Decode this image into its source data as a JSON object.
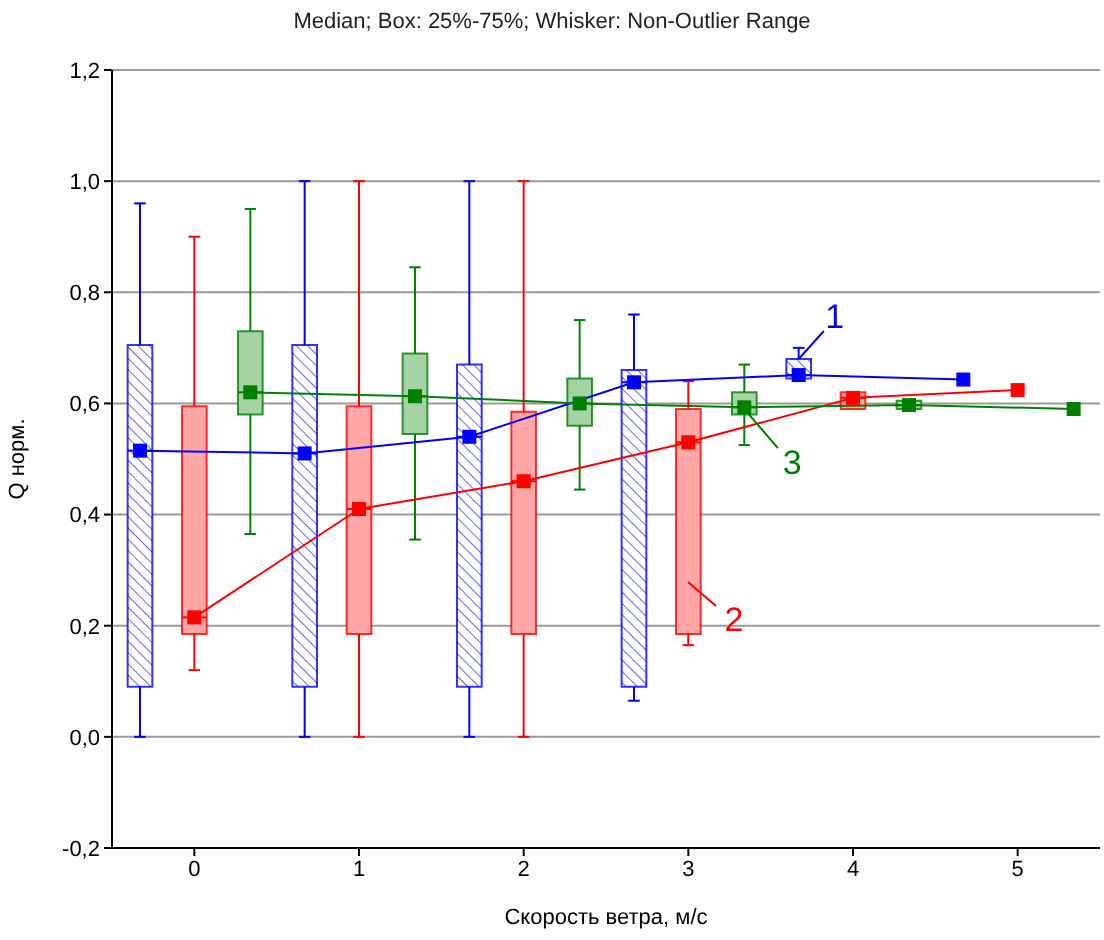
{
  "chart_data": {
    "type": "box",
    "title": "Median; Box: 25%-75%; Whisker: Non-Outlier Range",
    "xlabel": "Скорость ветра, м/с",
    "ylabel": "Q норм.",
    "xlim": [
      -0.5,
      5.5
    ],
    "xticks": [
      0,
      1,
      2,
      3,
      4,
      5
    ],
    "ylim": [
      -0.2,
      1.2
    ],
    "yticks": [
      {
        "value": -0.2,
        "label": "-0,2"
      },
      {
        "value": 0,
        "label": "0,0"
      },
      {
        "value": 0.2,
        "label": "0,2"
      },
      {
        "value": 0.4,
        "label": "0,4"
      },
      {
        "value": 0.6,
        "label": "0,6"
      },
      {
        "value": 0.8,
        "label": "0,8"
      },
      {
        "value": 1.0,
        "label": "1,0"
      },
      {
        "value": 1.2,
        "label": "1,2"
      }
    ],
    "grid": "y",
    "marker": "square",
    "series": [
      {
        "color": "#0000ff",
        "x": [
          -0.33,
          0.67,
          1.67,
          2.67,
          3.67
        ],
        "boxes": [
          {
            "low": 0,
            "q1": 0.09,
            "median": 0.515,
            "q3": 0.705,
            "high": 0.96
          },
          {
            "low": 0,
            "q1": 0.09,
            "median": 0.51,
            "q3": 0.705,
            "high": 1.0
          },
          {
            "low": 0,
            "q1": 0.09,
            "median": 0.54,
            "q3": 0.67,
            "high": 1.0
          },
          {
            "low": 0.065,
            "q1": 0.09,
            "median": 0.638,
            "q3": 0.66,
            "high": 0.76
          },
          {
            "low": 0.645,
            "q1": 0.645,
            "median": 0.651,
            "q3": 0.68,
            "high": 0.7
          }
        ]
      },
      {
        "color": "#ff0000",
        "x": [
          0,
          1,
          2,
          3,
          4
        ],
        "boxes": [
          {
            "low": 0.12,
            "q1": 0.185,
            "median": 0.215,
            "q3": 0.595,
            "high": 0.9
          },
          {
            "low": 0,
            "q1": 0.185,
            "median": 0.41,
            "q3": 0.595,
            "high": 1.0
          },
          {
            "low": 0,
            "q1": 0.185,
            "median": 0.46,
            "q3": 0.585,
            "high": 1.0
          },
          {
            "low": 0.165,
            "q1": 0.185,
            "median": 0.53,
            "q3": 0.59,
            "high": 0.64
          },
          {
            "low": 0.59,
            "q1": 0.59,
            "median": 0.61,
            "q3": 0.62,
            "high": 0.62
          }
        ]
      },
      {
        "color": "#008000",
        "x": [
          0.34,
          1.34,
          2.34,
          3.34,
          4.34
        ],
        "boxes": [
          {
            "low": 0.365,
            "q1": 0.58,
            "median": 0.62,
            "q3": 0.73,
            "high": 0.95
          },
          {
            "low": 0.355,
            "q1": 0.545,
            "median": 0.613,
            "q3": 0.69,
            "high": 0.845
          },
          {
            "low": 0.445,
            "q1": 0.56,
            "median": 0.6,
            "q3": 0.645,
            "high": 0.75
          },
          {
            "low": 0.525,
            "q1": 0.58,
            "median": 0.593,
            "q3": 0.62,
            "high": 0.67
          },
          {
            "low": 0.59,
            "q1": 0.59,
            "median": 0.597,
            "q3": 0.605,
            "high": 0.605
          }
        ]
      },
      {
        "type": "line",
        "color": "#0000ff",
        "x": [
          -0.33,
          0.67,
          1.67,
          2.67,
          3.67,
          4.67
        ],
        "values": [
          0.515,
          0.51,
          0.54,
          0.638,
          0.651,
          0.643
        ]
      },
      {
        "type": "line",
        "color": "#ff0000",
        "x": [
          0,
          1,
          2,
          3,
          4,
          5
        ],
        "values": [
          0.215,
          0.41,
          0.46,
          0.53,
          0.61,
          0.624
        ]
      },
      {
        "type": "line",
        "color": "#008000",
        "x": [
          0.34,
          1.34,
          2.34,
          3.34,
          4.34,
          5.34
        ],
        "values": [
          0.62,
          0.613,
          0.6,
          0.593,
          0.597,
          0.59
        ]
      }
    ],
    "annotations": [
      {
        "text": "1",
        "x": 3.67,
        "y": 0.68
      },
      "2",
      {
        "text": "3",
        "x": 3.34,
        "y": 0.59
      }
    ]
  }
}
